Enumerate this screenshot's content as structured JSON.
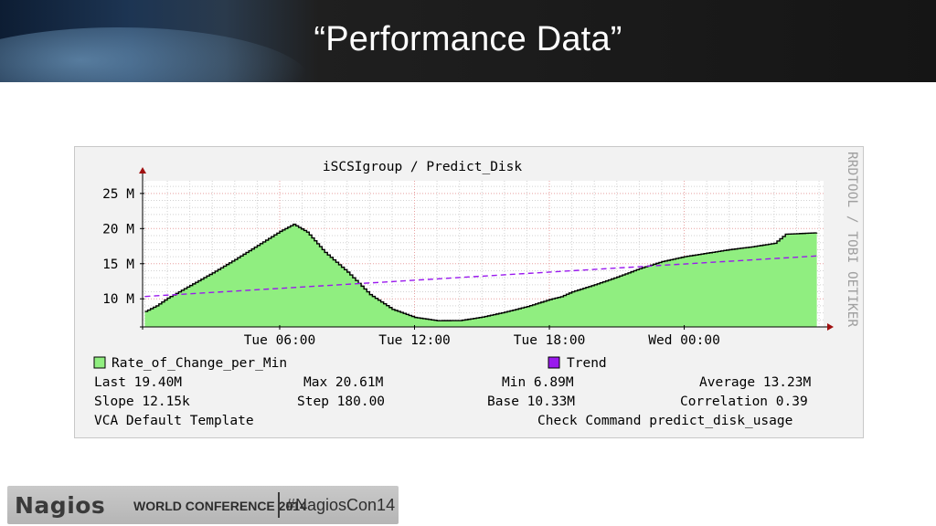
{
  "slide": {
    "title": "“Performance Data”"
  },
  "footer": {
    "logo": "Nagios",
    "conference": "WORLD CONFERENCE 2014",
    "hashtag": "#NagiosCon14"
  },
  "chart_data": {
    "type": "area",
    "title": "iSCSIgroup / Predict_Disk",
    "watermark": "RRDTOOL / TOBI OETIKER",
    "xlabel": "",
    "ylabel": "",
    "y_ticks": [
      10,
      15,
      20,
      25
    ],
    "y_tick_labels": [
      "10 M",
      "15 M",
      "20 M",
      "25 M"
    ],
    "ylim": [
      6.0,
      26.8
    ],
    "y_unit": "M",
    "x_ticks": [
      6,
      12,
      18,
      24
    ],
    "x_tick_labels": [
      "Tue 06:00",
      "Tue 12:00",
      "Tue 18:00",
      "Wed 00:00"
    ],
    "xlim": [
      -0.1,
      30.2
    ],
    "grid": true,
    "colors": {
      "area_fill": "#90ee80",
      "area_line": "#000000",
      "trend": "#9a19ee",
      "grid_major": "#e8a0a0",
      "grid_minor": "#d2d2d2",
      "axis": "#000000",
      "arrow": "#a01010"
    },
    "series": [
      {
        "name": "Rate_of_Change_per_Min",
        "type": "area",
        "x": [
          0,
          0.5,
          1,
          2,
          3,
          4,
          5,
          6,
          6.6,
          7.2,
          8,
          9,
          10,
          11,
          12,
          13,
          14,
          15,
          16,
          17,
          18,
          18.5,
          19,
          20,
          21,
          22,
          23,
          24,
          25,
          26,
          27,
          28,
          28.5,
          29.9
        ],
        "values": [
          8.2,
          9.0,
          10.1,
          11.9,
          13.7,
          15.6,
          17.6,
          19.6,
          20.61,
          19.5,
          16.6,
          13.8,
          10.6,
          8.5,
          7.35,
          6.89,
          6.9,
          7.4,
          8.1,
          8.9,
          9.9,
          10.3,
          11.0,
          12.0,
          13.1,
          14.3,
          15.3,
          16.0,
          16.5,
          17.0,
          17.4,
          17.9,
          19.2,
          19.4
        ]
      },
      {
        "name": "Trend",
        "type": "line",
        "style": "dashed",
        "x": [
          0,
          29.9
        ],
        "values": [
          10.33,
          16.1
        ]
      }
    ],
    "legend_position": "bottom-left",
    "stats": {
      "last": "Last  19.40M",
      "max": "Max  20.61M",
      "min": "Min   6.89M",
      "average": "Average  13.23M",
      "slope": "Slope  12.15k",
      "step": "Step 180.00",
      "base": "Base  10.33M",
      "correlation": "Correlation 0.39",
      "template": "VCA Default Template",
      "check_command": "Check Command predict_disk_usage"
    }
  }
}
